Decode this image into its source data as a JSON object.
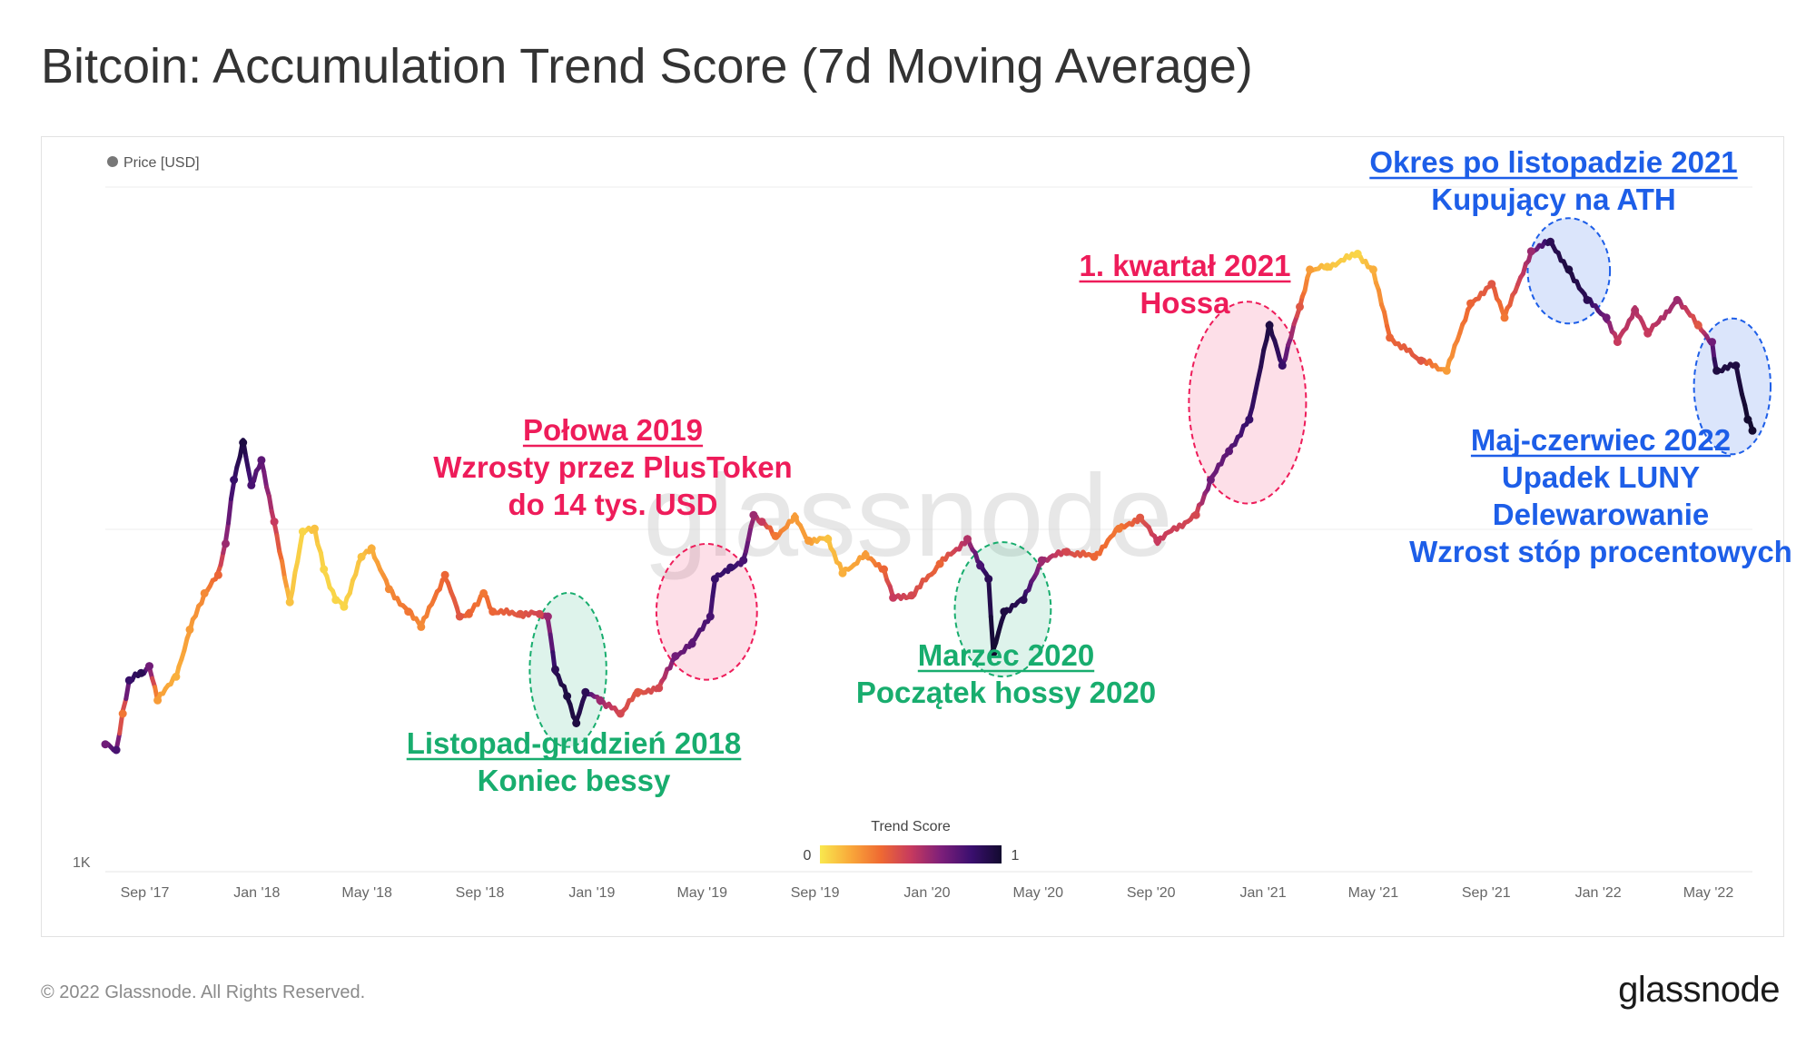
{
  "page": {
    "title": "Bitcoin: Accumulation Trend Score (7d Moving Average)",
    "copyright": "© 2022 Glassnode. All Rights Reserved.",
    "logo": "glassnode",
    "watermark": "glassnode"
  },
  "chart_data": {
    "type": "line",
    "title": "Bitcoin: Accumulation Trend Score (7d Moving Average)",
    "legend": {
      "label": "Price [USD]",
      "placement": "top-left"
    },
    "y_axis": {
      "scale": "log",
      "tick_labels": [
        "1K"
      ]
    },
    "x_axis": {
      "tick_labels": [
        "Sep '17",
        "Jan '18",
        "May '18",
        "Sep '18",
        "Jan '19",
        "May '19",
        "Sep '19",
        "Jan '20",
        "May '20",
        "Sep '20",
        "Jan '21",
        "May '21",
        "Sep '21",
        "Jan '22",
        "May '22"
      ],
      "tick_dates": [
        "2017-09-01",
        "2018-01-01",
        "2018-05-01",
        "2018-09-01",
        "2019-01-01",
        "2019-05-01",
        "2019-09-01",
        "2020-01-01",
        "2020-05-01",
        "2020-09-01",
        "2021-01-01",
        "2021-05-01",
        "2021-09-01",
        "2022-01-01",
        "2022-05-01"
      ],
      "range": [
        "2017-07-20",
        "2022-06-18"
      ]
    },
    "colorbar": {
      "title": "Trend Score",
      "min_label": "0",
      "max_label": "1",
      "stops": [
        "#f9e84e",
        "#f9a93a",
        "#ef6a32",
        "#c73a5e",
        "#7d1f7a",
        "#3b0f6f",
        "#120a2f"
      ]
    },
    "series": [
      {
        "name": "Price [USD]",
        "points": [
          {
            "date": "2017-07-20",
            "price": 2800,
            "score": 0.7
          },
          {
            "date": "2017-08-01",
            "price": 2700,
            "score": 0.8
          },
          {
            "date": "2017-08-08",
            "price": 3400,
            "score": 0.3
          },
          {
            "date": "2017-08-15",
            "price": 4200,
            "score": 0.85
          },
          {
            "date": "2017-08-28",
            "price": 4400,
            "score": 0.9
          },
          {
            "date": "2017-09-06",
            "price": 4600,
            "score": 0.7
          },
          {
            "date": "2017-09-15",
            "price": 3700,
            "score": 0.2
          },
          {
            "date": "2017-10-05",
            "price": 4300,
            "score": 0.15
          },
          {
            "date": "2017-10-20",
            "price": 5800,
            "score": 0.2
          },
          {
            "date": "2017-11-05",
            "price": 7300,
            "score": 0.25
          },
          {
            "date": "2017-11-20",
            "price": 8200,
            "score": 0.35
          },
          {
            "date": "2017-11-28",
            "price": 10000,
            "score": 0.6
          },
          {
            "date": "2017-12-07",
            "price": 15000,
            "score": 0.85
          },
          {
            "date": "2017-12-17",
            "price": 19000,
            "score": 0.95
          },
          {
            "date": "2017-12-26",
            "price": 14500,
            "score": 0.8
          },
          {
            "date": "2018-01-06",
            "price": 17000,
            "score": 0.75
          },
          {
            "date": "2018-01-20",
            "price": 11500,
            "score": 0.5
          },
          {
            "date": "2018-02-06",
            "price": 6900,
            "score": 0.1
          },
          {
            "date": "2018-02-20",
            "price": 10800,
            "score": 0.05
          },
          {
            "date": "2018-03-05",
            "price": 11000,
            "score": 0.1
          },
          {
            "date": "2018-03-15",
            "price": 8500,
            "score": 0.05
          },
          {
            "date": "2018-03-28",
            "price": 7000,
            "score": 0.05
          },
          {
            "date": "2018-04-06",
            "price": 6700,
            "score": 0.05
          },
          {
            "date": "2018-04-25",
            "price": 9200,
            "score": 0.1
          },
          {
            "date": "2018-05-06",
            "price": 9700,
            "score": 0.15
          },
          {
            "date": "2018-05-25",
            "price": 7500,
            "score": 0.25
          },
          {
            "date": "2018-06-15",
            "price": 6500,
            "score": 0.3
          },
          {
            "date": "2018-06-29",
            "price": 5900,
            "score": 0.25
          },
          {
            "date": "2018-07-25",
            "price": 8200,
            "score": 0.35
          },
          {
            "date": "2018-08-10",
            "price": 6300,
            "score": 0.4
          },
          {
            "date": "2018-08-20",
            "price": 6400,
            "score": 0.35
          },
          {
            "date": "2018-09-05",
            "price": 7300,
            "score": 0.3
          },
          {
            "date": "2018-09-15",
            "price": 6500,
            "score": 0.35
          },
          {
            "date": "2018-10-15",
            "price": 6400,
            "score": 0.4
          },
          {
            "date": "2018-11-05",
            "price": 6400,
            "score": 0.45
          },
          {
            "date": "2018-11-14",
            "price": 6300,
            "score": 0.6
          },
          {
            "date": "2018-11-22",
            "price": 4500,
            "score": 0.9
          },
          {
            "date": "2018-12-05",
            "price": 3800,
            "score": 0.95
          },
          {
            "date": "2018-12-15",
            "price": 3200,
            "score": 0.95
          },
          {
            "date": "2018-12-25",
            "price": 3900,
            "score": 0.9
          },
          {
            "date": "2019-01-10",
            "price": 3700,
            "score": 0.6
          },
          {
            "date": "2019-02-01",
            "price": 3400,
            "score": 0.45
          },
          {
            "date": "2019-02-20",
            "price": 3900,
            "score": 0.4
          },
          {
            "date": "2019-03-15",
            "price": 4000,
            "score": 0.45
          },
          {
            "date": "2019-04-02",
            "price": 4900,
            "score": 0.7
          },
          {
            "date": "2019-04-20",
            "price": 5300,
            "score": 0.75
          },
          {
            "date": "2019-05-10",
            "price": 6300,
            "score": 0.8
          },
          {
            "date": "2019-05-15",
            "price": 8000,
            "score": 0.85
          },
          {
            "date": "2019-06-01",
            "price": 8600,
            "score": 0.85
          },
          {
            "date": "2019-06-15",
            "price": 9000,
            "score": 0.8
          },
          {
            "date": "2019-06-26",
            "price": 12000,
            "score": 0.6
          },
          {
            "date": "2019-07-05",
            "price": 11500,
            "score": 0.5
          },
          {
            "date": "2019-07-20",
            "price": 10500,
            "score": 0.3
          },
          {
            "date": "2019-08-10",
            "price": 11800,
            "score": 0.2
          },
          {
            "date": "2019-08-25",
            "price": 10200,
            "score": 0.2
          },
          {
            "date": "2019-09-15",
            "price": 10300,
            "score": 0.1
          },
          {
            "date": "2019-10-01",
            "price": 8300,
            "score": 0.15
          },
          {
            "date": "2019-10-26",
            "price": 9300,
            "score": 0.2
          },
          {
            "date": "2019-11-15",
            "price": 8500,
            "score": 0.35
          },
          {
            "date": "2019-11-25",
            "price": 7100,
            "score": 0.5
          },
          {
            "date": "2019-12-15",
            "price": 7200,
            "score": 0.45
          },
          {
            "date": "2020-01-15",
            "price": 8800,
            "score": 0.35
          },
          {
            "date": "2020-02-14",
            "price": 10300,
            "score": 0.55
          },
          {
            "date": "2020-02-28",
            "price": 8700,
            "score": 0.8
          },
          {
            "date": "2020-03-08",
            "price": 8000,
            "score": 0.9
          },
          {
            "date": "2020-03-13",
            "price": 5000,
            "score": 1.0
          },
          {
            "date": "2020-03-25",
            "price": 6500,
            "score": 0.95
          },
          {
            "date": "2020-04-15",
            "price": 7000,
            "score": 0.9
          },
          {
            "date": "2020-05-05",
            "price": 9000,
            "score": 0.6
          },
          {
            "date": "2020-06-01",
            "price": 9500,
            "score": 0.45
          },
          {
            "date": "2020-07-01",
            "price": 9200,
            "score": 0.35
          },
          {
            "date": "2020-07-28",
            "price": 11000,
            "score": 0.3
          },
          {
            "date": "2020-08-20",
            "price": 11800,
            "score": 0.4
          },
          {
            "date": "2020-09-08",
            "price": 10200,
            "score": 0.5
          },
          {
            "date": "2020-10-20",
            "price": 12000,
            "score": 0.45
          },
          {
            "date": "2020-11-05",
            "price": 15000,
            "score": 0.7
          },
          {
            "date": "2020-11-25",
            "price": 18000,
            "score": 0.75
          },
          {
            "date": "2020-12-17",
            "price": 22000,
            "score": 0.85
          },
          {
            "date": "2021-01-08",
            "price": 40000,
            "score": 0.95
          },
          {
            "date": "2021-01-22",
            "price": 31000,
            "score": 0.85
          },
          {
            "date": "2021-02-10",
            "price": 45000,
            "score": 0.4
          },
          {
            "date": "2021-02-21",
            "price": 57000,
            "score": 0.2
          },
          {
            "date": "2021-03-12",
            "price": 58000,
            "score": 0.1
          },
          {
            "date": "2021-04-14",
            "price": 63000,
            "score": 0.05
          },
          {
            "date": "2021-05-01",
            "price": 57000,
            "score": 0.15
          },
          {
            "date": "2021-05-19",
            "price": 37000,
            "score": 0.35
          },
          {
            "date": "2021-06-22",
            "price": 32000,
            "score": 0.4
          },
          {
            "date": "2021-07-20",
            "price": 30000,
            "score": 0.2
          },
          {
            "date": "2021-08-15",
            "price": 46000,
            "score": 0.35
          },
          {
            "date": "2021-09-07",
            "price": 52000,
            "score": 0.4
          },
          {
            "date": "2021-09-21",
            "price": 42000,
            "score": 0.3
          },
          {
            "date": "2021-10-20",
            "price": 64000,
            "score": 0.6
          },
          {
            "date": "2021-11-10",
            "price": 68000,
            "score": 0.9
          },
          {
            "date": "2021-11-30",
            "price": 57000,
            "score": 0.95
          },
          {
            "date": "2021-12-20",
            "price": 47000,
            "score": 0.9
          },
          {
            "date": "2022-01-10",
            "price": 42000,
            "score": 0.7
          },
          {
            "date": "2022-01-22",
            "price": 36000,
            "score": 0.5
          },
          {
            "date": "2022-02-10",
            "price": 44000,
            "score": 0.55
          },
          {
            "date": "2022-02-24",
            "price": 38000,
            "score": 0.5
          },
          {
            "date": "2022-03-28",
            "price": 47000,
            "score": 0.6
          },
          {
            "date": "2022-04-20",
            "price": 40000,
            "score": 0.4
          },
          {
            "date": "2022-05-05",
            "price": 36000,
            "score": 0.7
          },
          {
            "date": "2022-05-10",
            "price": 30000,
            "score": 0.95
          },
          {
            "date": "2022-05-31",
            "price": 31000,
            "score": 0.95
          },
          {
            "date": "2022-06-13",
            "price": 22000,
            "score": 1.0
          },
          {
            "date": "2022-06-18",
            "price": 20500,
            "score": 1.0
          }
        ]
      }
    ],
    "annotations": [
      {
        "id": "listopad",
        "lines": [
          "Listopad-grudzień 2018",
          "Koniec bessy"
        ],
        "color": "#18ad6e",
        "start": "2018-11-14",
        "end": "2018-12-28"
      },
      {
        "id": "polowa",
        "lines": [
          "Połowa 2019",
          "Wzrosty przez PlusToken",
          "do 14 tys. USD"
        ],
        "color": "#ee1c5a",
        "start": "2019-04-01",
        "end": "2019-06-10"
      },
      {
        "id": "marzec",
        "lines": [
          "Marzec 2020",
          "Początek hossy 2020"
        ],
        "color": "#18ad6e",
        "start": "2020-02-20",
        "end": "2020-04-25"
      },
      {
        "id": "kwartal",
        "lines": [
          "1. kwartał 2021",
          "Hossa"
        ],
        "color": "#ee1c5a",
        "start": "2020-11-01",
        "end": "2021-01-28"
      },
      {
        "id": "okres",
        "lines": [
          "Okres po listopadzie 2021",
          "Kupujący na ATH"
        ],
        "color": "#1d5ee8",
        "start": "2021-11-05",
        "end": "2021-12-25"
      },
      {
        "id": "maj",
        "lines": [
          "Maj-czerwiec 2022",
          "Upadek LUNY",
          "Delewarowanie",
          "Wzrost stóp procentowych"
        ],
        "color": "#1d5ee8",
        "start": "2022-05-05",
        "end": "2022-06-18"
      }
    ]
  }
}
